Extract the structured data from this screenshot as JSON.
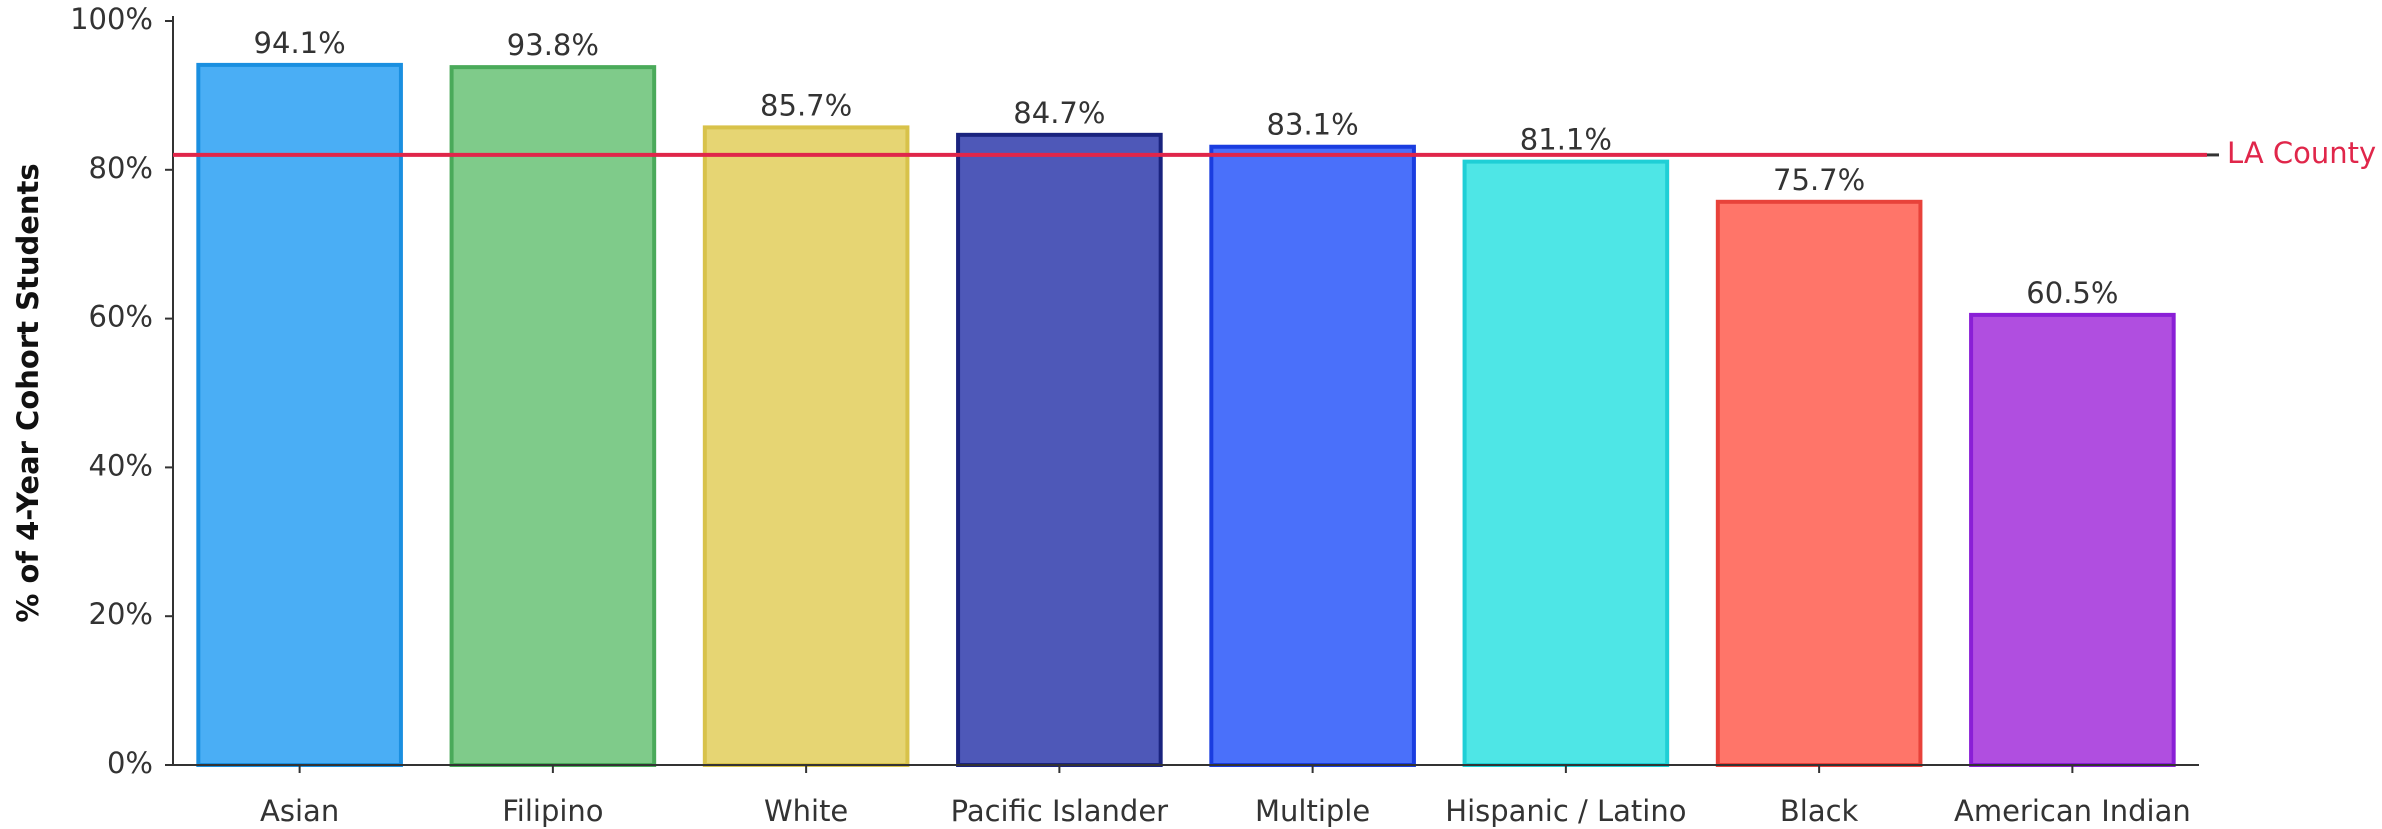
{
  "chart_data": {
    "type": "bar",
    "y_axis_label": "% of 4-Year Cohort Students",
    "categories": [
      "Asian",
      "Filipino",
      "White",
      "Pacific Islander",
      "Multiple",
      "Hispanic / Latino",
      "Black",
      "American Indian"
    ],
    "values": [
      94.1,
      93.8,
      85.7,
      84.7,
      83.1,
      81.1,
      75.7,
      60.5
    ],
    "value_labels": [
      "94.1%",
      "93.8%",
      "85.7%",
      "84.7%",
      "83.1%",
      "81.1%",
      "75.7%",
      "60.5%"
    ],
    "colors": [
      "#4aaef5",
      "#7fcb8a",
      "#e6d573",
      "#4e58b8",
      "#4a70fa",
      "#4ee6e6",
      "#ff7569",
      "#b04ee0"
    ],
    "edge_colors": [
      "#1a8fe0",
      "#4aaa5a",
      "#d8c24a",
      "#1a237e",
      "#1a3de0",
      "#1fcfd6",
      "#e8423a",
      "#8a1fd6"
    ],
    "ylim": [
      0,
      100
    ],
    "yticks": [
      {
        "value": 0,
        "label": "0%"
      },
      {
        "value": 20,
        "label": "20%"
      },
      {
        "value": 40,
        "label": "40%"
      },
      {
        "value": 60,
        "label": "60%"
      },
      {
        "value": 80,
        "label": "80%"
      },
      {
        "value": 100,
        "label": "100%"
      }
    ],
    "reference_line": {
      "label": "LA County",
      "value": 82,
      "color": "#e0264a"
    }
  }
}
